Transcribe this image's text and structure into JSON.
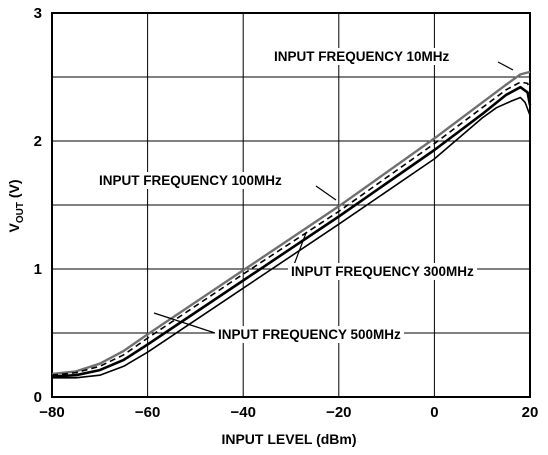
{
  "chart_data": {
    "type": "line",
    "xlabel": "INPUT LEVEL (dBm)",
    "ylabel": {
      "main": "V",
      "sub": "OUT",
      "unit": " (V)"
    },
    "xlim": [
      -80,
      20
    ],
    "ylim": [
      0,
      3
    ],
    "x_ticks": [
      -80,
      -60,
      -40,
      -20,
      0,
      20
    ],
    "x_tick_labels": [
      "−80",
      "−60",
      "−40",
      "−20",
      "0",
      "20"
    ],
    "y_ticks": [
      0,
      1,
      2,
      3
    ],
    "y_tick_labels": [
      "0",
      "1",
      "2",
      "3"
    ],
    "grid": true,
    "series": [
      {
        "name": "INPUT FREQUENCY 10MHz",
        "color": "#707070",
        "style": "solid",
        "points": [
          [
            -80,
            0.18
          ],
          [
            -75,
            0.2
          ],
          [
            -70,
            0.26
          ],
          [
            -65,
            0.36
          ],
          [
            -60,
            0.49
          ],
          [
            -40,
            0.99
          ],
          [
            -20,
            1.49
          ],
          [
            0,
            2.02
          ],
          [
            10,
            2.3
          ],
          [
            15,
            2.44
          ],
          [
            18,
            2.52
          ],
          [
            20,
            2.54
          ]
        ]
      },
      {
        "name": "INPUT FREQUENCY 100MHz",
        "color": "#000000",
        "style": "dashed",
        "points": [
          [
            -80,
            0.17
          ],
          [
            -75,
            0.19
          ],
          [
            -70,
            0.24
          ],
          [
            -65,
            0.33
          ],
          [
            -60,
            0.46
          ],
          [
            -40,
            0.96
          ],
          [
            -20,
            1.45
          ],
          [
            0,
            1.98
          ],
          [
            10,
            2.26
          ],
          [
            15,
            2.4
          ],
          [
            18,
            2.46
          ],
          [
            19.5,
            2.45
          ],
          [
            20,
            2.4
          ]
        ]
      },
      {
        "name": "INPUT FREQUENCY 300MHz",
        "color": "#000000",
        "style": "solid-thick",
        "points": [
          [
            -80,
            0.16
          ],
          [
            -75,
            0.17
          ],
          [
            -70,
            0.21
          ],
          [
            -65,
            0.29
          ],
          [
            -60,
            0.41
          ],
          [
            -40,
            0.91
          ],
          [
            -20,
            1.41
          ],
          [
            0,
            1.93
          ],
          [
            10,
            2.21
          ],
          [
            15,
            2.36
          ],
          [
            18,
            2.42
          ],
          [
            19.5,
            2.38
          ],
          [
            20,
            2.28
          ]
        ]
      },
      {
        "name": "INPUT FREQUENCY 500MHz",
        "color": "#000000",
        "style": "solid",
        "points": [
          [
            -80,
            0.15
          ],
          [
            -75,
            0.15
          ],
          [
            -70,
            0.17
          ],
          [
            -65,
            0.24
          ],
          [
            -60,
            0.35
          ],
          [
            -40,
            0.85
          ],
          [
            -20,
            1.35
          ],
          [
            0,
            1.86
          ],
          [
            10,
            2.18
          ],
          [
            13,
            2.26
          ],
          [
            16,
            2.31
          ],
          [
            18,
            2.34
          ],
          [
            19,
            2.3
          ],
          [
            20,
            2.2
          ]
        ]
      }
    ],
    "annotations": [
      {
        "text": "INPUT FREQUENCY 10MHz",
        "series": 0
      },
      {
        "text": "INPUT FREQUENCY 100MHz",
        "series": 1
      },
      {
        "text": "INPUT FREQUENCY 300MHz",
        "series": 2
      },
      {
        "text": "INPUT FREQUENCY 500MHz",
        "series": 3
      }
    ]
  }
}
